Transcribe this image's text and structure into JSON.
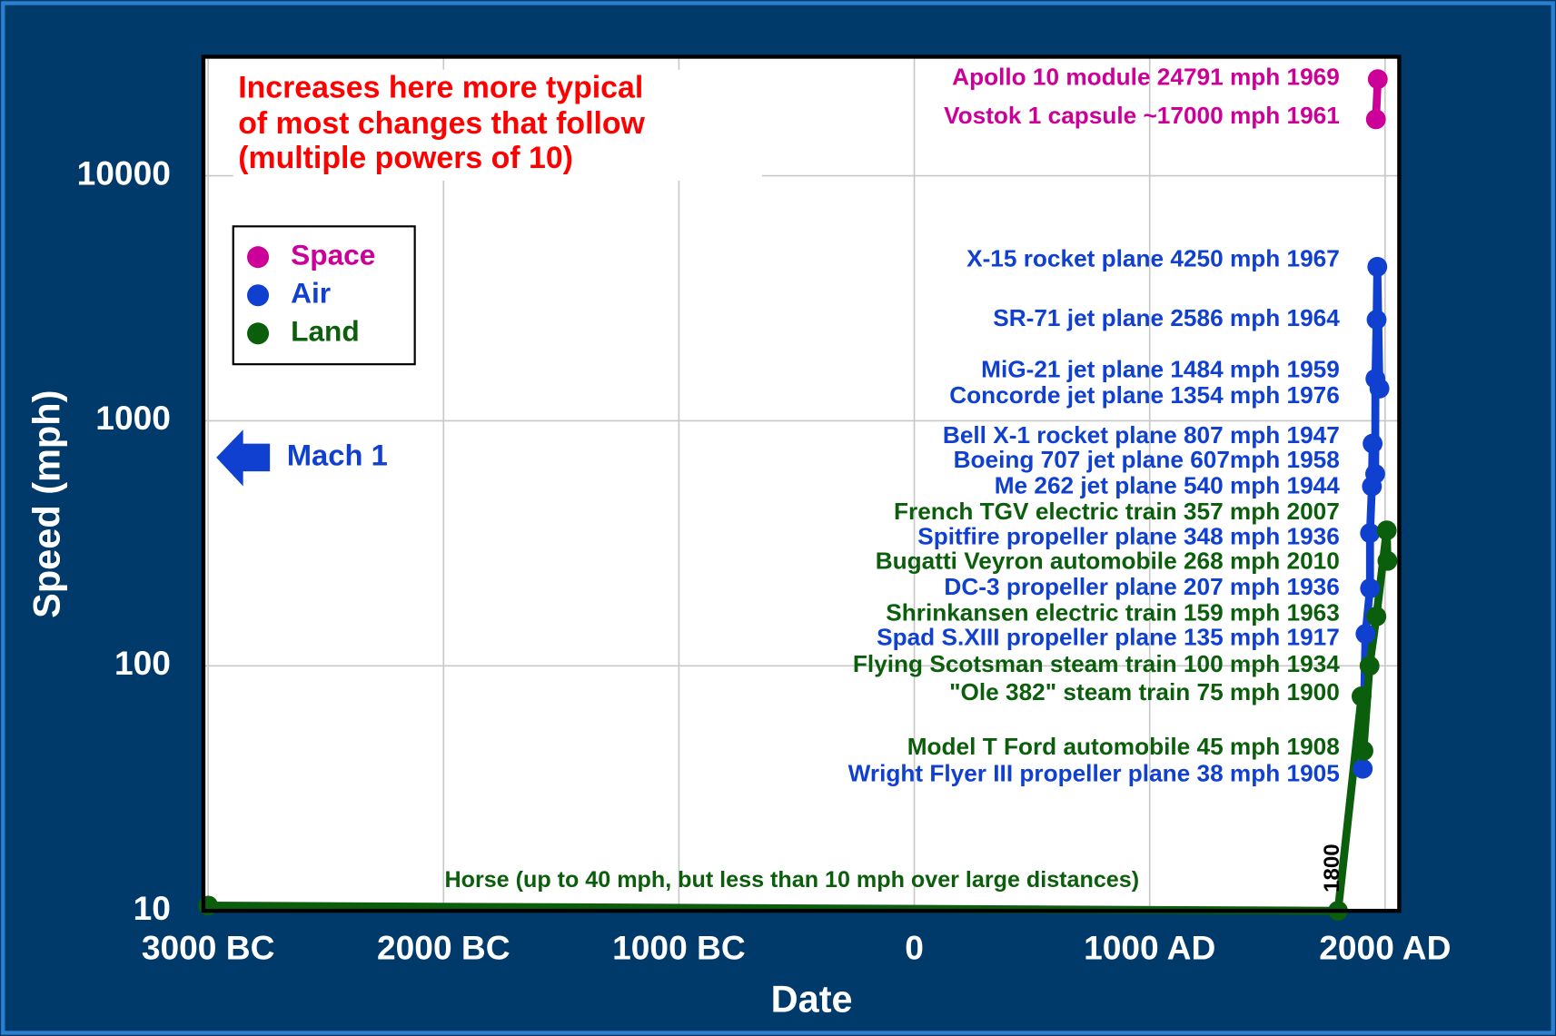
{
  "chart_data": {
    "type": "scatter",
    "annotation": [
      "Increases here more typical",
      "of most changes that follow",
      "(multiple powers of 10)"
    ],
    "mach_label": "Mach 1",
    "xlabel": "Date",
    "ylabel": "Speed (mph)",
    "log_y": true,
    "grid": true,
    "legend": "upper left",
    "xlim": [
      -3020,
      2060
    ],
    "ylim": [
      10,
      30600
    ],
    "xticks": [
      {
        "value": -3000,
        "label": "3000 BC"
      },
      {
        "value": -2000,
        "label": "2000 BC"
      },
      {
        "value": -1000,
        "label": "1000 BC"
      },
      0,
      {
        "value": 1000,
        "label": "1000 AD"
      },
      {
        "value": 2000,
        "label": "2000 AD"
      }
    ],
    "yticks": [
      10,
      100,
      1000,
      10000
    ],
    "series": [
      {
        "name": "Space",
        "color": "#cc0099",
        "x": [
          1961,
          1969
        ],
        "values": [
          17000,
          24791
        ],
        "labels": [
          "Vostok 1 capsule  ~17000 mph  1961",
          "Apollo 10 module  24791 mph  1969"
        ]
      },
      {
        "name": "Air",
        "color": "#1040d0",
        "x": [
          1905,
          1917,
          1936,
          1936,
          1944,
          1947,
          1958,
          1959,
          1964,
          1967,
          1976
        ],
        "values": [
          38,
          135,
          207,
          348,
          540,
          807,
          607,
          1484,
          2586,
          4250,
          1354
        ],
        "labels": [
          "Wright Flyer III  propeller plane  38 mph  1905",
          "Spad S.XIII  propeller plane  135 mph  1917",
          "DC-3  propeller plane  207 mph  1936",
          "Spitfire  propeller plane  348 mph  1936",
          "Me 262  jet plane  540 mph 1944",
          "Bell X-1  rocket plane  807 mph  1947",
          "Boeing 707  jet plane  607mph  1958",
          "MiG-21  jet plane  1484 mph  1959",
          "SR-71  jet plane  2586 mph  1964",
          "X-15  rocket plane  4250 mph  1967",
          "Concorde  jet plane  1354 mph  1976"
        ]
      },
      {
        "name": "Land",
        "color": "#0b5e0b",
        "x": [
          -3000,
          1800,
          1900,
          1908,
          1934,
          1963,
          2007,
          2010
        ],
        "values": [
          10.5,
          10,
          75,
          45,
          100,
          159,
          357,
          268
        ],
        "labels": [
          "Horse (up to 40 mph, but less than 10 mph over large distances)",
          null,
          "\"Ole 382\"  steam train  75 mph  1900",
          "Model T Ford  automobile  45 mph  1908",
          "Flying Scotsman  steam train  100 mph  1934",
          "Shrinkansen  electric train  159 mph  1963",
          "French TGV  electric train  357 mph  2007",
          "Bugatti Veyron  automobile  268 mph  2010"
        ]
      }
    ]
  }
}
